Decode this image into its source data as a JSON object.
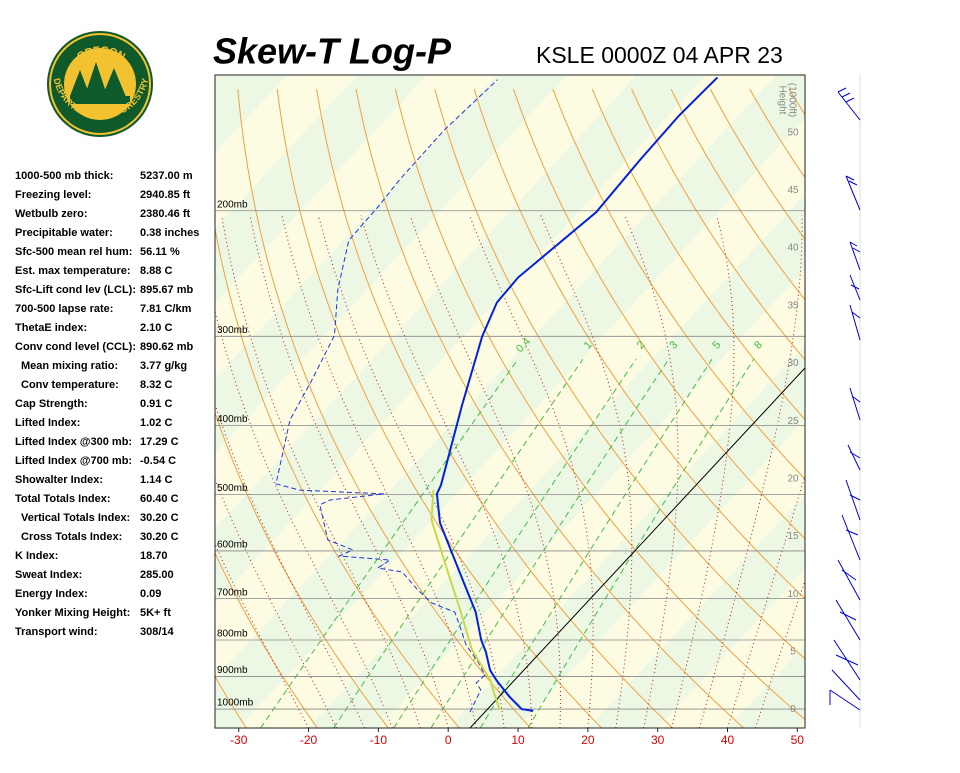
{
  "logo": {
    "top": "OREGON",
    "bottom": "DEPARTMENT OF FORESTRY"
  },
  "stats": [
    [
      "1000-500 mb thick:",
      "5237.00 m"
    ],
    [
      "Freezing level:",
      "2940.85 ft"
    ],
    [
      "Wetbulb zero:",
      "2380.46 ft"
    ],
    [
      "Precipitable water:",
      "0.38 inches"
    ],
    [
      "Sfc-500 mean rel hum:",
      "56.11 %"
    ],
    [
      "Est. max temperature:",
      "8.88 C"
    ],
    [
      "Sfc-Lift cond lev (LCL):",
      "895.67 mb"
    ],
    [
      "700-500 lapse rate:",
      "7.81 C/km"
    ],
    [
      "ThetaE index:",
      "2.10 C"
    ],
    [
      "Conv cond level (CCL):",
      "890.62 mb"
    ],
    [
      "Mean mixing ratio:",
      "3.77 g/kg"
    ],
    [
      "Conv temperature:",
      "8.32 C"
    ],
    [
      "Cap Strength:",
      "0.91 C"
    ],
    [
      "Lifted Index:",
      "1.02 C"
    ],
    [
      "Lifted Index @300 mb:",
      "17.29 C"
    ],
    [
      "Lifted Index @700 mb:",
      "-0.54 C"
    ],
    [
      "Showalter Index:",
      "1.14 C"
    ],
    [
      "Total Totals Index:",
      "60.40 C"
    ],
    [
      "Vertical Totals Index:",
      "30.20 C"
    ],
    [
      "Cross Totals Index:",
      "30.20 C"
    ],
    [
      "K Index:",
      "18.70"
    ],
    [
      "Sweat Index:",
      "285.00"
    ],
    [
      "Energy Index:",
      "0.09"
    ],
    [
      "Yonker Mixing Height:",
      "5K+ ft"
    ],
    [
      "Transport wind:",
      "308/14"
    ]
  ],
  "chart_data": {
    "type": "skew-t",
    "title": "Skew-T Log-P",
    "subtitle": "KSLE 0000Z 04 APR 23",
    "xlim": [
      -33.4,
      51.1
    ],
    "xticks": [
      -30,
      -20,
      -10,
      0,
      10,
      20,
      30,
      40,
      50
    ],
    "ylim": [
      1063,
      129
    ],
    "log_y": true,
    "yticks": [
      {
        "value": 200,
        "label": "200mb"
      },
      {
        "value": 300,
        "label": "300mb"
      },
      {
        "value": 400,
        "label": "400mb"
      },
      {
        "value": 500,
        "label": "500mb"
      },
      {
        "value": 600,
        "label": "600mb"
      },
      {
        "value": 700,
        "label": "700mb"
      },
      {
        "value": 800,
        "label": "800mb"
      },
      {
        "value": 900,
        "label": "900mb"
      },
      {
        "value": 1000,
        "label": "1000mb"
      }
    ],
    "y2label": [
      "Height",
      "(1000ft)"
    ],
    "y2lim": [
      -1.6,
      55
    ],
    "y2ticks": [
      0,
      5,
      10,
      15,
      20,
      25,
      30,
      35,
      40,
      45,
      50
    ],
    "mixing_ratio_labels": [
      {
        "value": 0.4,
        "label": "0.4"
      },
      {
        "value": 1,
        "label": "1"
      },
      {
        "value": 2,
        "label": "2"
      },
      {
        "value": 3,
        "label": "3"
      },
      {
        "value": 5,
        "label": "5"
      },
      {
        "value": 8,
        "label": "8"
      }
    ],
    "grid": true,
    "series": [
      {
        "color": "#0022dd",
        "dashed": false,
        "pressure": [
          1006,
          1000,
          962,
          913,
          882,
          832,
          800,
          731,
          655,
          548,
          499,
          485,
          375,
          300,
          269,
          248,
          201,
          170,
          147,
          130
        ],
        "values": [
          9.9,
          8.0,
          4.7,
          0.7,
          -1.7,
          -4.7,
          -7.0,
          -11.5,
          -18.0,
          -28.5,
          -32.8,
          -33.4,
          -41.0,
          -47.3,
          -49.7,
          -50.0,
          -47.5,
          -48.2,
          -48.5,
          -48.1
        ]
      },
      {
        "color": "#2233dd",
        "dashed": true,
        "pressure": [
          1010,
          940,
          919,
          896,
          859,
          813,
          769,
          731,
          710,
          681,
          642,
          634,
          618,
          610,
          598,
          579,
          517,
          509,
          499,
          493,
          483,
          393,
          345,
          299,
          258,
          220,
          196,
          181,
          154,
          131
        ],
        "values": [
          1.0,
          -0.4,
          -2.0,
          -1.8,
          -4.5,
          -8.5,
          -11.6,
          -14.5,
          -19.0,
          -22.7,
          -27.4,
          -31.4,
          -30.7,
          -38.5,
          -37.4,
          -42.3,
          -48.1,
          -47.3,
          -40.4,
          -53.0,
          -57.2,
          -63.7,
          -65.9,
          -68.6,
          -74.2,
          -79.2,
          -79.5,
          -80.0,
          -80.2,
          -79.3
        ]
      },
      {
        "color": "#c8d84a",
        "dashed": false,
        "pressure": [
          1003,
          956,
          910,
          826,
          726,
          638,
          543,
          493
        ],
        "values": [
          5.0,
          2.3,
          -0.4,
          -7.0,
          -14.0,
          -21.2,
          -30.1,
          -33.8
        ]
      }
    ]
  }
}
